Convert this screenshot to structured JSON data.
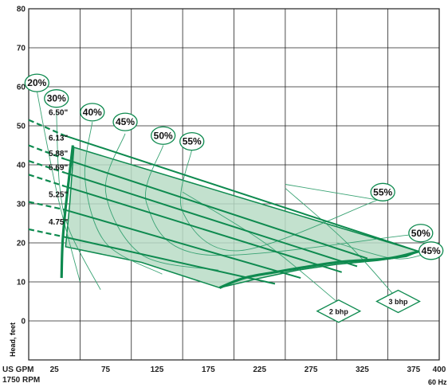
{
  "chart_data": {
    "type": "line",
    "xlabel": "US GPM",
    "xlabel2": "1750 RPM",
    "ylabel": "Head, feet",
    "frequency_label": "60 Hz",
    "xlim": [
      0,
      400
    ],
    "ylim": [
      -10,
      80
    ],
    "x_ticks": [
      {
        "value": 25,
        "label": "25"
      },
      {
        "value": 75,
        "label": "75"
      },
      {
        "value": 125,
        "label": "125"
      },
      {
        "value": 175,
        "label": "175"
      },
      {
        "value": 225,
        "label": "225"
      },
      {
        "value": 275,
        "label": "275"
      },
      {
        "value": 325,
        "label": "325"
      },
      {
        "value": 375,
        "label": "375"
      },
      {
        "value": 400,
        "label": "400"
      }
    ],
    "y_ticks": [
      {
        "value": 0,
        "label": "0"
      },
      {
        "value": 10,
        "label": "10"
      },
      {
        "value": 20,
        "label": "20"
      },
      {
        "value": 30,
        "label": "30"
      },
      {
        "value": 40,
        "label": "40"
      },
      {
        "value": 50,
        "label": "50"
      },
      {
        "value": 60,
        "label": "60"
      },
      {
        "value": 70,
        "label": "70"
      },
      {
        "value": 80,
        "label": "80"
      }
    ],
    "grid": true,
    "colors": {
      "curve": "#0e8a4f",
      "region": "#b9dcc5",
      "thin": "#3aa374",
      "grid": "#222222"
    },
    "impeller_curves": [
      {
        "label": "6.50\"",
        "dashed": [
          [
            0,
            51.5
          ],
          [
            35,
            47.5
          ]
        ],
        "solid": [
          [
            35,
            47.5
          ],
          [
            380,
            17.8
          ]
        ]
      },
      {
        "label": "6.13\"",
        "dashed": [
          [
            0,
            45
          ],
          [
            35,
            41.5
          ]
        ],
        "solid": [
          [
            35,
            41.5
          ],
          [
            330,
            16
          ]
        ]
      },
      {
        "label": "5.88\"",
        "dashed": [
          [
            0,
            41
          ],
          [
            35,
            38
          ]
        ],
        "solid": [
          [
            35,
            38
          ],
          [
            320,
            14
          ]
        ]
      },
      {
        "label": "5.69\"",
        "dashed": [
          [
            0,
            37.5
          ],
          [
            35,
            34.5
          ]
        ],
        "solid": [
          [
            35,
            34.5
          ],
          [
            305,
            12.5
          ]
        ]
      },
      {
        "label": "5.25\"",
        "dashed": [
          [
            0,
            30.5
          ],
          [
            35,
            28.5
          ]
        ],
        "solid": [
          [
            35,
            28.5
          ],
          [
            265,
            11
          ]
        ]
      },
      {
        "label": "4.75\"",
        "dashed": [
          [
            0,
            23.5
          ],
          [
            35,
            21.5
          ]
        ],
        "solid": [
          [
            35,
            21.5
          ],
          [
            240,
            9.5
          ]
        ]
      }
    ],
    "operating_region": [
      [
        44,
        44.5
      ],
      [
        380,
        17.8
      ],
      [
        368,
        16.5
      ],
      [
        340,
        15.5
      ],
      [
        300,
        14.5
      ],
      [
        262,
        13
      ],
      [
        226,
        11
      ],
      [
        186,
        8.5
      ],
      [
        110,
        15
      ],
      [
        36,
        19
      ],
      [
        40,
        30
      ],
      [
        44,
        44.5
      ]
    ],
    "efficiency_labels": [
      {
        "label": "20%",
        "x": 8,
        "y": 61
      },
      {
        "label": "30%",
        "x": 27,
        "y": 57
      },
      {
        "label": "40%",
        "x": 62,
        "y": 53.5
      },
      {
        "label": "45%",
        "x": 94,
        "y": 51
      },
      {
        "label": "50%",
        "x": 131,
        "y": 47.5
      },
      {
        "label": "55%",
        "x": 159,
        "y": 46
      },
      {
        "label": "55%",
        "x": 345,
        "y": 33
      },
      {
        "label": "50%",
        "x": 382,
        "y": 22.5
      },
      {
        "label": "45%",
        "x": 392,
        "y": 18
      }
    ],
    "bhp_labels": [
      {
        "label": "2 bhp",
        "x": 302,
        "y": 2.5
      },
      {
        "label": "3 bhp",
        "x": 360,
        "y": 5
      }
    ],
    "npsh_left_curve": [
      [
        43,
        45
      ],
      [
        36,
        29
      ],
      [
        33,
        20
      ],
      [
        32,
        11
      ]
    ],
    "npsh_bottom_curve": [
      [
        186,
        8.5
      ],
      [
        210,
        11
      ],
      [
        240,
        12.5
      ],
      [
        300,
        15
      ],
      [
        350,
        16
      ],
      [
        380,
        17.8
      ]
    ],
    "efficiency_curves": [
      {
        "label": "20%",
        "points": [
          [
            8,
            59
          ],
          [
            18,
            45
          ],
          [
            30,
            30
          ],
          [
            50,
            10
          ]
        ]
      },
      {
        "label": "30%",
        "points": [
          [
            27,
            54
          ],
          [
            30,
            35
          ],
          [
            40,
            23
          ],
          [
            70,
            8
          ]
        ]
      },
      {
        "label": "40%",
        "points": [
          [
            62,
            51
          ],
          [
            55,
            36
          ],
          [
            75,
            20
          ],
          [
            130,
            12
          ]
        ]
      },
      {
        "label": "45%",
        "points": [
          [
            94,
            48
          ],
          [
            75,
            33
          ],
          [
            110,
            17
          ],
          [
            185,
            13
          ]
        ]
      },
      {
        "label": "50%",
        "points": [
          [
            131,
            45
          ],
          [
            115,
            30
          ],
          [
            170,
            17
          ],
          [
            370,
            22
          ]
        ]
      },
      {
        "label": "55%",
        "points": [
          [
            159,
            44
          ],
          [
            150,
            28
          ],
          [
            205,
            18
          ],
          [
            340,
            31
          ]
        ]
      },
      {
        "label": "55%-upper",
        "points": [
          [
            250,
            35
          ],
          [
            340,
            31
          ]
        ]
      },
      {
        "label": "45%-right",
        "points": [
          [
            300,
            20
          ],
          [
            355,
            16
          ],
          [
            385,
            17
          ]
        ]
      }
    ],
    "power_curves": [
      {
        "label": "2 bhp",
        "points": [
          [
            150,
            33
          ],
          [
            230,
            20
          ],
          [
            300,
            5
          ]
        ]
      },
      {
        "label": "3 bhp",
        "points": [
          [
            250,
            34
          ],
          [
            310,
            20
          ],
          [
            358,
            6
          ]
        ]
      }
    ]
  }
}
